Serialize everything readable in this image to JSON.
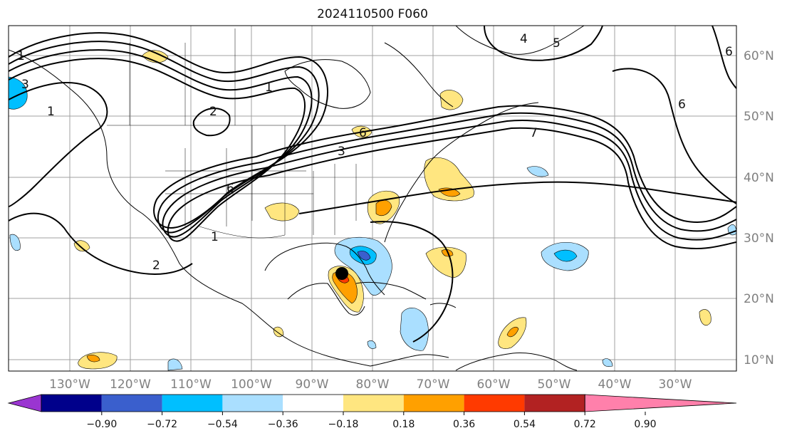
{
  "title": "2024110500 F060",
  "lon_ticks": [
    "130°W",
    "120°W",
    "110°W",
    "100°W",
    "90°W",
    "80°W",
    "70°W",
    "60°W",
    "50°W",
    "40°W",
    "30°W"
  ],
  "lat_ticks": [
    "60°N",
    "50°N",
    "40°N",
    "30°N",
    "20°N",
    "10°N"
  ],
  "colorbar": {
    "ticks": [
      "−0.90",
      "−0.72",
      "−0.54",
      "−0.36",
      "−0.18",
      "0.18",
      "0.36",
      "0.54",
      "0.72",
      "0.90"
    ],
    "colors": [
      "#9a35d1",
      "#00008b",
      "#3a5fcd",
      "#00bfff",
      "#aadfff",
      "#ffffff",
      "#ffe680",
      "#ffa000",
      "#ff3a00",
      "#b22222",
      "#ff80ab"
    ]
  },
  "contour_labels": [
    "1",
    "1",
    "1",
    "1",
    "2",
    "2",
    "3",
    "3",
    "4",
    "5",
    "6",
    "6",
    "6",
    "6",
    "7"
  ],
  "storm_marker": "black-dot"
}
